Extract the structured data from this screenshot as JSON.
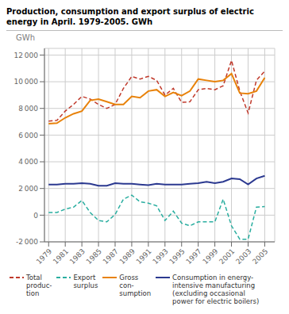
{
  "chart_data": {
    "type": "line",
    "title": "Production, consumption and export surplus of electric\nenergy in April. 1979-2005. GWh",
    "y_label": "GWh",
    "x": [
      1979,
      1980,
      1981,
      1982,
      1983,
      1984,
      1985,
      1986,
      1987,
      1988,
      1989,
      1990,
      1991,
      1992,
      1993,
      1994,
      1995,
      1996,
      1997,
      1998,
      1999,
      2000,
      2001,
      2002,
      2003,
      2004,
      2005
    ],
    "series": [
      {
        "name": "Total\nproduc-\ntion",
        "color": "#C0392B",
        "line_style": "dashed",
        "values": [
          7050,
          7100,
          7800,
          8300,
          8900,
          8700,
          8300,
          8000,
          8300,
          9500,
          10400,
          10200,
          10400,
          10100,
          9000,
          9500,
          8450,
          8500,
          9400,
          9500,
          9400,
          9700,
          11600,
          9300,
          7650,
          10100,
          10800
        ]
      },
      {
        "name": "Export\nsurplus",
        "color": "#2AAEA0",
        "line_style": "dashed",
        "values": [
          200,
          200,
          450,
          600,
          1100,
          200,
          -400,
          -500,
          50,
          1200,
          1500,
          1000,
          900,
          700,
          -400,
          300,
          -600,
          -800,
          -500,
          -500,
          -500,
          1200,
          -800,
          -1800,
          -1800,
          600,
          650
        ]
      },
      {
        "name": "Gross\ncon-\nsumption",
        "color": "#E8820A",
        "line_style": "solid",
        "values": [
          6850,
          6900,
          7300,
          7600,
          7800,
          8600,
          8700,
          8500,
          8300,
          8300,
          8900,
          8800,
          9300,
          9400,
          8900,
          9200,
          8950,
          9300,
          10200,
          10100,
          10000,
          10100,
          10600,
          9150,
          9100,
          9300,
          10300
        ]
      },
      {
        "name": "Consumption in energy-\nintensive manufacturing\n(excluding occasional\npower for electric boilers)",
        "color": "#2B3990",
        "line_style": "solid",
        "values": [
          2300,
          2300,
          2350,
          2350,
          2400,
          2350,
          2200,
          2200,
          2400,
          2350,
          2350,
          2300,
          2250,
          2350,
          2300,
          2300,
          2300,
          2350,
          2400,
          2500,
          2400,
          2500,
          2750,
          2700,
          2300,
          2750,
          2950
        ]
      }
    ],
    "xlim": [
      1978.5,
      2006.2
    ],
    "xticks": [
      1979,
      1981,
      1983,
      1985,
      1987,
      1989,
      1991,
      1993,
      1995,
      1997,
      1999,
      2001,
      2003,
      2005
    ],
    "ylim": [
      -2000,
      12500
    ],
    "yticks": [
      {
        "value": -2000,
        "label": "-2 000"
      },
      0,
      {
        "value": 2000,
        "label": "2 000"
      },
      {
        "value": 4000,
        "label": "4 000"
      },
      {
        "value": 6000,
        "label": "6 000"
      },
      {
        "value": 8000,
        "label": "8 000"
      },
      {
        "value": 10000,
        "label": "10 000"
      },
      {
        "value": 12000,
        "label": "12 000"
      }
    ],
    "grid": true,
    "legend": "bottom"
  }
}
